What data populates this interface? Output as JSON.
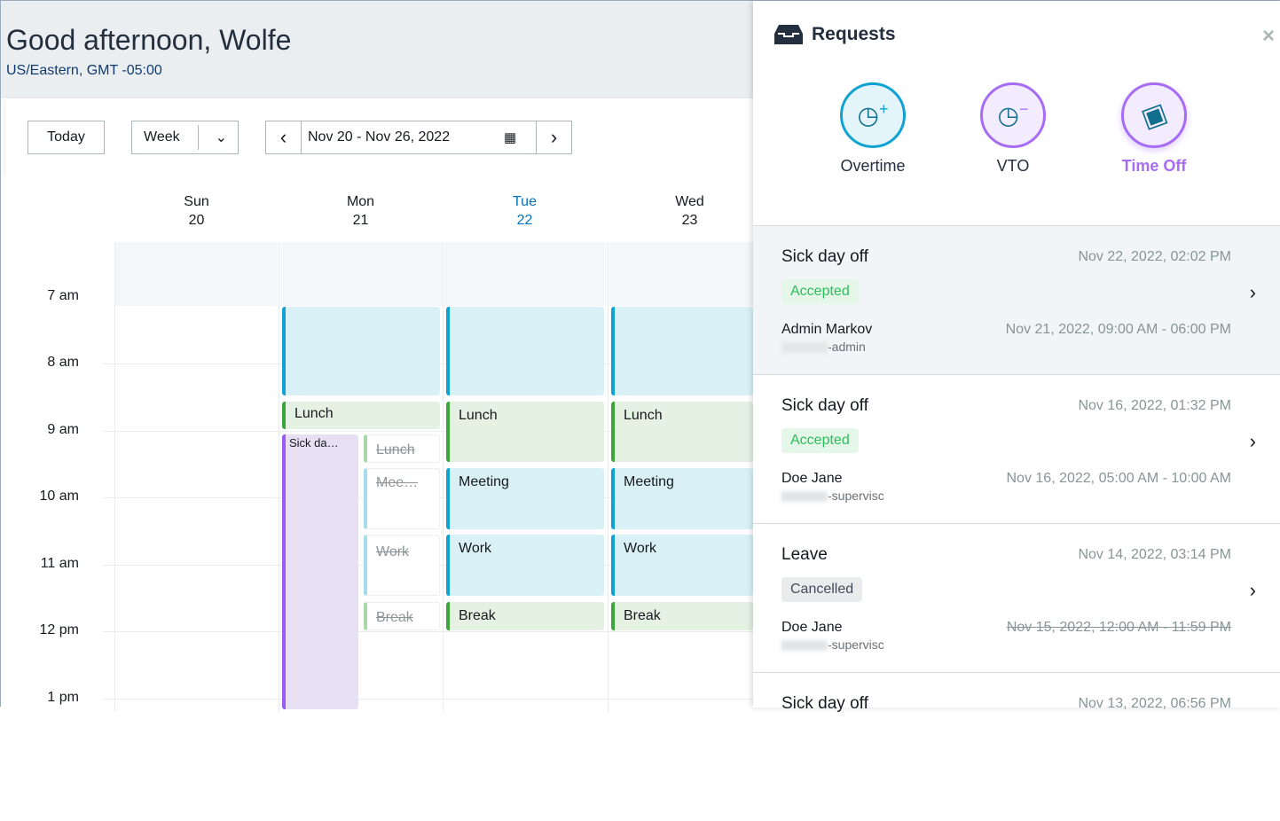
{
  "header": {
    "greeting": "Good afternoon, Wolfe",
    "timezone": "US/Eastern, GMT -05:00"
  },
  "toolbar": {
    "today": "Today",
    "view": "Week",
    "date_range": "Nov 20 - Nov 26, 2022"
  },
  "days": [
    {
      "name": "Sun",
      "num": "20"
    },
    {
      "name": "Mon",
      "num": "21"
    },
    {
      "name": "Tue",
      "num": "22",
      "today": true
    },
    {
      "name": "Wed",
      "num": "23"
    }
  ],
  "times": [
    "7 am",
    "8 am",
    "9 am",
    "10 am",
    "11 am",
    "12 pm",
    "1 pm"
  ],
  "events": {
    "lunch": "Lunch",
    "meeting": "Meeting",
    "work": "Work",
    "break": "Break",
    "sick": "Sick da…",
    "meeting_short": "Mee…"
  },
  "panel": {
    "title": "Requests",
    "actions": [
      {
        "label": "Overtime",
        "color": "#10a2d2"
      },
      {
        "label": "VTO",
        "color": "#a66cf6"
      },
      {
        "label": "Time Off",
        "color": "#a66cf6"
      }
    ],
    "requests": [
      {
        "type": "Sick day off",
        "created": "Nov 22, 2022, 02:02 PM",
        "status": "Accepted",
        "who": "Admin Markov",
        "role": "-admin",
        "range": "Nov 21, 2022, 09:00 AM - 06:00 PM"
      },
      {
        "type": "Sick day off",
        "created": "Nov 16, 2022, 01:32 PM",
        "status": "Accepted",
        "who": "Doe Jane",
        "role": "-supervisc",
        "range": "Nov 16, 2022, 05:00 AM - 10:00 AM"
      },
      {
        "type": "Leave",
        "created": "Nov 14, 2022, 03:14 PM",
        "status": "Cancelled",
        "who": "Doe Jane",
        "role": "-supervisc",
        "range": "Nov 15, 2022, 12:00 AM - 11:59 PM"
      },
      {
        "type": "Sick day off",
        "created": "Nov 13, 2022, 06:56 PM"
      }
    ]
  }
}
